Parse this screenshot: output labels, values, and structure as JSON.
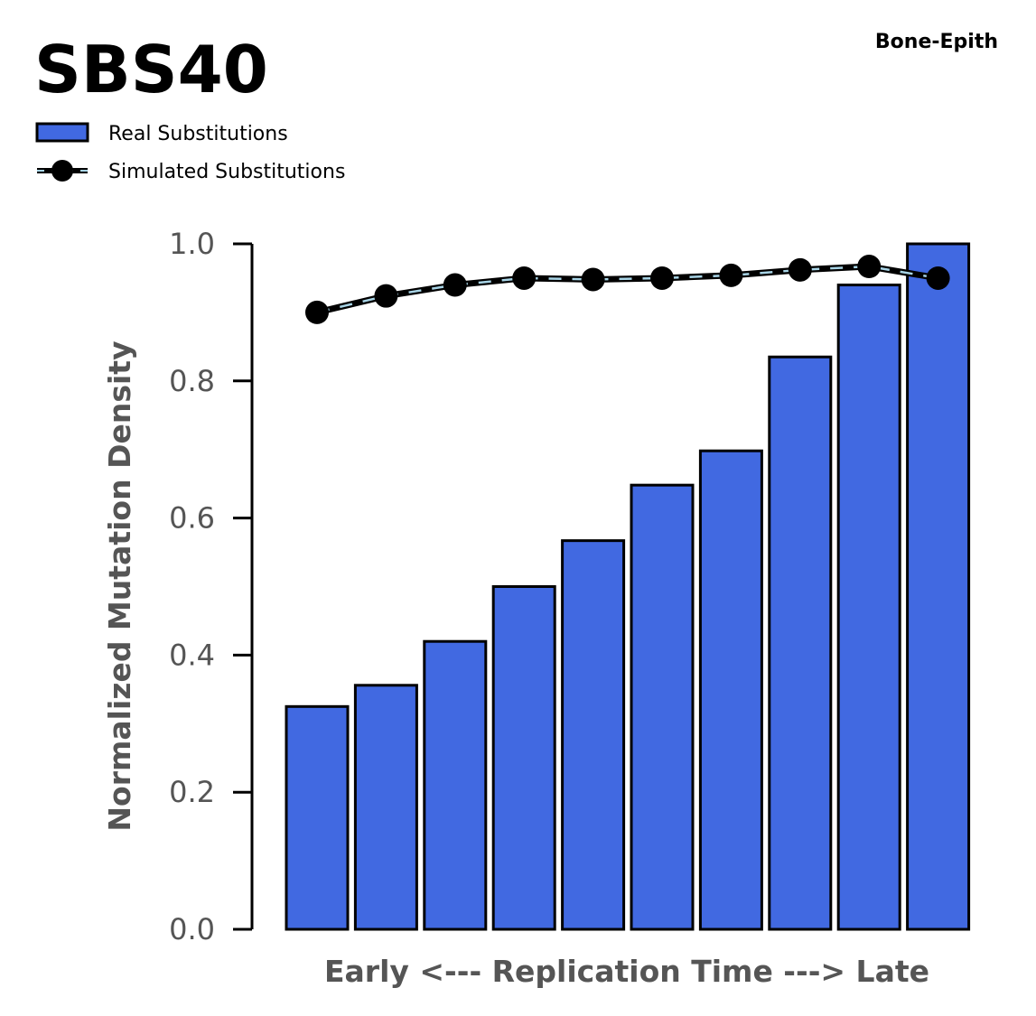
{
  "chart_data": {
    "type": "bar",
    "title": "SBS40",
    "subtitle": "Bone-Epith",
    "xlabel": "Early <--- Replication Time ---> Late",
    "ylabel": "Normalized Mutation Density",
    "ylim": [
      0,
      1.0
    ],
    "yticks": [
      "0.0",
      "0.2",
      "0.4",
      "0.6",
      "0.8",
      "1.0"
    ],
    "grid": false,
    "legend_position": "top-left",
    "series": [
      {
        "name": "Real Substitutions",
        "type": "bar",
        "color": "#4169e1",
        "values": [
          0.325,
          0.356,
          0.42,
          0.5,
          0.567,
          0.648,
          0.698,
          0.835,
          0.94,
          1.0
        ]
      },
      {
        "name": "Simulated Substitutions",
        "type": "line",
        "color": "#000000",
        "dash_color": "#a8d4e6",
        "values": [
          0.9,
          0.924,
          0.94,
          0.95,
          0.948,
          0.95,
          0.954,
          0.962,
          0.967,
          0.95
        ]
      }
    ]
  }
}
